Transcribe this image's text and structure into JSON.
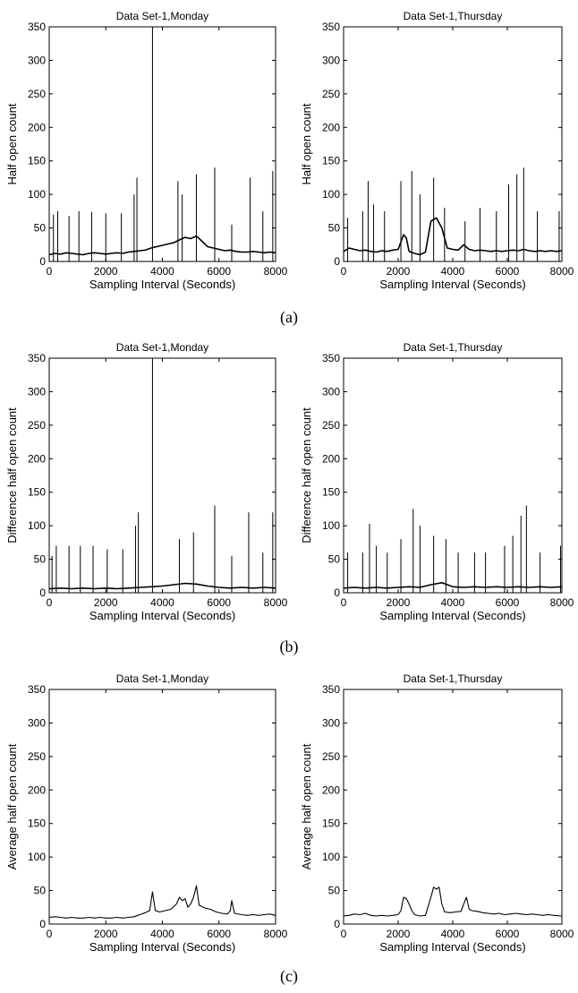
{
  "figure": {
    "panel_labels": [
      "(a)",
      "(b)",
      "(c)"
    ]
  },
  "chart_data": [
    {
      "type": "line",
      "panel": "(a)",
      "title": "Data Set-1,Monday",
      "xlabel": "Sampling Interval (Seconds)",
      "ylabel": "Half open count",
      "xlim": [
        0,
        8000
      ],
      "ylim": [
        0,
        350
      ],
      "xticks": [
        0,
        2000,
        4000,
        6000,
        8000
      ],
      "yticks": [
        0,
        50,
        100,
        150,
        200,
        250,
        300,
        350
      ],
      "grid": false,
      "legend": "none",
      "line_color": "#000000",
      "x": [
        0,
        200,
        400,
        600,
        800,
        1000,
        1200,
        1400,
        1600,
        1800,
        2000,
        2200,
        2400,
        2600,
        2800,
        3000,
        3200,
        3400,
        3600,
        3800,
        4000,
        4200,
        4400,
        4600,
        4800,
        5000,
        5200,
        5400,
        5600,
        5800,
        6000,
        6200,
        6400,
        6600,
        6800,
        7000,
        7200,
        7400,
        7600,
        7800,
        8000
      ],
      "y": [
        10,
        12,
        11,
        13,
        12,
        11,
        10,
        12,
        13,
        12,
        11,
        12,
        13,
        12,
        14,
        15,
        16,
        17,
        20,
        22,
        24,
        26,
        28,
        32,
        36,
        34,
        38,
        30,
        22,
        20,
        18,
        16,
        17,
        15,
        14,
        14,
        15,
        14,
        13,
        14,
        13
      ],
      "spikes": [
        {
          "x": 150,
          "y": 70
        },
        {
          "x": 300,
          "y": 75
        },
        {
          "x": 700,
          "y": 68
        },
        {
          "x": 1050,
          "y": 75
        },
        {
          "x": 1500,
          "y": 74
        },
        {
          "x": 2000,
          "y": 72
        },
        {
          "x": 2550,
          "y": 72
        },
        {
          "x": 3000,
          "y": 100
        },
        {
          "x": 3100,
          "y": 125
        },
        {
          "x": 3650,
          "y": 350
        },
        {
          "x": 4550,
          "y": 120
        },
        {
          "x": 4700,
          "y": 100
        },
        {
          "x": 5200,
          "y": 130
        },
        {
          "x": 5850,
          "y": 140
        },
        {
          "x": 6450,
          "y": 55
        },
        {
          "x": 7100,
          "y": 125
        },
        {
          "x": 7550,
          "y": 75
        },
        {
          "x": 7900,
          "y": 135
        }
      ]
    },
    {
      "type": "line",
      "panel": "(a)",
      "title": "Data Set-1,Thursday",
      "xlabel": "Sampling Interval (Seconds)",
      "ylabel": "Half open count",
      "xlim": [
        0,
        8000
      ],
      "ylim": [
        0,
        350
      ],
      "xticks": [
        0,
        2000,
        4000,
        6000,
        8000
      ],
      "yticks": [
        0,
        50,
        100,
        150,
        200,
        250,
        300,
        350
      ],
      "grid": false,
      "legend": "none",
      "line_color": "#000000",
      "x": [
        0,
        200,
        400,
        600,
        800,
        1000,
        1200,
        1400,
        1600,
        1800,
        2000,
        2200,
        2300,
        2400,
        2600,
        2800,
        3000,
        3200,
        3400,
        3600,
        3800,
        4000,
        4200,
        4400,
        4600,
        4800,
        5000,
        5200,
        5400,
        5600,
        5800,
        6000,
        6200,
        6400,
        6600,
        6800,
        7000,
        7200,
        7400,
        7600,
        7800,
        8000
      ],
      "y": [
        15,
        20,
        18,
        16,
        17,
        15,
        14,
        16,
        15,
        17,
        18,
        40,
        35,
        15,
        12,
        10,
        14,
        60,
        65,
        50,
        20,
        18,
        17,
        25,
        18,
        16,
        17,
        16,
        15,
        16,
        15,
        16,
        17,
        16,
        18,
        16,
        15,
        16,
        15,
        16,
        15,
        16
      ],
      "spikes": [
        {
          "x": 150,
          "y": 65
        },
        {
          "x": 700,
          "y": 75
        },
        {
          "x": 900,
          "y": 120
        },
        {
          "x": 1100,
          "y": 85
        },
        {
          "x": 1500,
          "y": 75
        },
        {
          "x": 2100,
          "y": 120
        },
        {
          "x": 2500,
          "y": 135
        },
        {
          "x": 2800,
          "y": 100
        },
        {
          "x": 3300,
          "y": 125
        },
        {
          "x": 3700,
          "y": 80
        },
        {
          "x": 4450,
          "y": 60
        },
        {
          "x": 5000,
          "y": 80
        },
        {
          "x": 5600,
          "y": 75
        },
        {
          "x": 6050,
          "y": 115
        },
        {
          "x": 6350,
          "y": 130
        },
        {
          "x": 6600,
          "y": 140
        },
        {
          "x": 7100,
          "y": 75
        },
        {
          "x": 7900,
          "y": 75
        }
      ]
    },
    {
      "type": "line",
      "panel": "(b)",
      "title": "Data Set-1,Monday",
      "xlabel": "Sampling Interval (Seconds)",
      "ylabel": "Difference half open count",
      "xlim": [
        0,
        8000
      ],
      "ylim": [
        0,
        350
      ],
      "xticks": [
        0,
        2000,
        4000,
        6000,
        8000
      ],
      "yticks": [
        0,
        50,
        100,
        150,
        200,
        250,
        300,
        350
      ],
      "grid": false,
      "legend": "none",
      "line_color": "#000000",
      "x": [
        0,
        400,
        800,
        1200,
        1600,
        2000,
        2400,
        2800,
        3200,
        3600,
        4000,
        4400,
        4800,
        5200,
        5600,
        6000,
        6400,
        6800,
        7200,
        7600,
        8000
      ],
      "y": [
        6,
        7,
        6,
        7,
        6,
        7,
        6,
        7,
        8,
        9,
        10,
        12,
        14,
        13,
        10,
        8,
        7,
        8,
        7,
        8,
        7
      ],
      "spikes": [
        {
          "x": 100,
          "y": 55
        },
        {
          "x": 250,
          "y": 70
        },
        {
          "x": 700,
          "y": 70
        },
        {
          "x": 1100,
          "y": 70
        },
        {
          "x": 1550,
          "y": 70
        },
        {
          "x": 2050,
          "y": 65
        },
        {
          "x": 2600,
          "y": 65
        },
        {
          "x": 3050,
          "y": 100
        },
        {
          "x": 3150,
          "y": 120
        },
        {
          "x": 3650,
          "y": 350
        },
        {
          "x": 4600,
          "y": 80
        },
        {
          "x": 5100,
          "y": 90
        },
        {
          "x": 5850,
          "y": 130
        },
        {
          "x": 6450,
          "y": 55
        },
        {
          "x": 7050,
          "y": 120
        },
        {
          "x": 7550,
          "y": 60
        },
        {
          "x": 7900,
          "y": 120
        }
      ]
    },
    {
      "type": "line",
      "panel": "(b)",
      "title": "Data Set-1,Thursday",
      "xlabel": "Sampling Interval (Seconds)",
      "ylabel": "Difference half open count",
      "xlim": [
        0,
        8000
      ],
      "ylim": [
        0,
        350
      ],
      "xticks": [
        0,
        2000,
        4000,
        6000,
        8000
      ],
      "yticks": [
        0,
        50,
        100,
        150,
        200,
        250,
        300,
        350
      ],
      "grid": false,
      "legend": "none",
      "line_color": "#000000",
      "x": [
        0,
        400,
        800,
        1200,
        1600,
        2000,
        2400,
        2800,
        3200,
        3600,
        4000,
        4400,
        4800,
        5200,
        5600,
        6000,
        6400,
        6800,
        7200,
        7600,
        8000
      ],
      "y": [
        7,
        8,
        7,
        8,
        7,
        8,
        9,
        8,
        12,
        15,
        9,
        8,
        9,
        8,
        9,
        8,
        9,
        8,
        9,
        8,
        9
      ],
      "spikes": [
        {
          "x": 150,
          "y": 60
        },
        {
          "x": 700,
          "y": 60
        },
        {
          "x": 950,
          "y": 103
        },
        {
          "x": 1200,
          "y": 70
        },
        {
          "x": 1600,
          "y": 60
        },
        {
          "x": 2100,
          "y": 80
        },
        {
          "x": 2550,
          "y": 125
        },
        {
          "x": 2800,
          "y": 100
        },
        {
          "x": 3300,
          "y": 85
        },
        {
          "x": 3750,
          "y": 80
        },
        {
          "x": 4200,
          "y": 60
        },
        {
          "x": 4800,
          "y": 60
        },
        {
          "x": 5200,
          "y": 60
        },
        {
          "x": 5900,
          "y": 70
        },
        {
          "x": 6200,
          "y": 85
        },
        {
          "x": 6500,
          "y": 115
        },
        {
          "x": 6700,
          "y": 130
        },
        {
          "x": 7200,
          "y": 60
        },
        {
          "x": 7950,
          "y": 70
        }
      ]
    },
    {
      "type": "line",
      "panel": "(c)",
      "title": "Data Set-1,Monday",
      "xlabel": "Sampling Interval (Seconds)",
      "ylabel": "Average half open count",
      "xlim": [
        0,
        8000
      ],
      "ylim": [
        0,
        350
      ],
      "xticks": [
        0,
        2000,
        4000,
        6000,
        8000
      ],
      "yticks": [
        0,
        50,
        100,
        150,
        200,
        250,
        300,
        350
      ],
      "grid": false,
      "legend": "none",
      "line_color": "#000000",
      "x": [
        0,
        200,
        400,
        600,
        800,
        1000,
        1200,
        1400,
        1600,
        1800,
        2000,
        2200,
        2400,
        2600,
        2800,
        3000,
        3200,
        3400,
        3550,
        3650,
        3750,
        3900,
        4100,
        4300,
        4500,
        4600,
        4700,
        4800,
        4900,
        5000,
        5100,
        5200,
        5300,
        5500,
        5700,
        5900,
        6100,
        6300,
        6400,
        6450,
        6550,
        6800,
        7000,
        7200,
        7400,
        7600,
        7800,
        8000
      ],
      "y": [
        10,
        11,
        10,
        9,
        10,
        9,
        9,
        10,
        9,
        10,
        9,
        9,
        10,
        9,
        10,
        11,
        14,
        17,
        20,
        48,
        20,
        18,
        20,
        22,
        30,
        40,
        35,
        38,
        25,
        30,
        40,
        57,
        28,
        24,
        22,
        18,
        16,
        15,
        20,
        35,
        16,
        14,
        13,
        14,
        13,
        14,
        15,
        13
      ]
    },
    {
      "type": "line",
      "panel": "(c)",
      "title": "Data Set-1,Thursday",
      "xlabel": "Sampling Interval (Seconds)",
      "ylabel": "Average half open count",
      "xlim": [
        0,
        8000
      ],
      "ylim": [
        0,
        350
      ],
      "xticks": [
        0,
        2000,
        4000,
        6000,
        8000
      ],
      "yticks": [
        0,
        50,
        100,
        150,
        200,
        250,
        300,
        350
      ],
      "grid": false,
      "legend": "none",
      "line_color": "#000000",
      "x": [
        0,
        200,
        400,
        600,
        800,
        1000,
        1200,
        1400,
        1600,
        1800,
        2000,
        2100,
        2200,
        2300,
        2400,
        2500,
        2600,
        2800,
        3000,
        3200,
        3300,
        3400,
        3500,
        3600,
        3700,
        3900,
        4100,
        4300,
        4500,
        4600,
        4700,
        4900,
        5100,
        5300,
        5500,
        5700,
        5900,
        6100,
        6300,
        6500,
        6700,
        6900,
        7100,
        7300,
        7500,
        7700,
        8000
      ],
      "y": [
        12,
        13,
        15,
        14,
        16,
        13,
        12,
        13,
        12,
        13,
        14,
        20,
        40,
        38,
        30,
        20,
        14,
        12,
        13,
        40,
        55,
        52,
        55,
        30,
        18,
        17,
        18,
        19,
        40,
        22,
        20,
        19,
        17,
        16,
        15,
        16,
        14,
        15,
        16,
        15,
        14,
        15,
        14,
        13,
        14,
        13,
        12
      ]
    }
  ]
}
